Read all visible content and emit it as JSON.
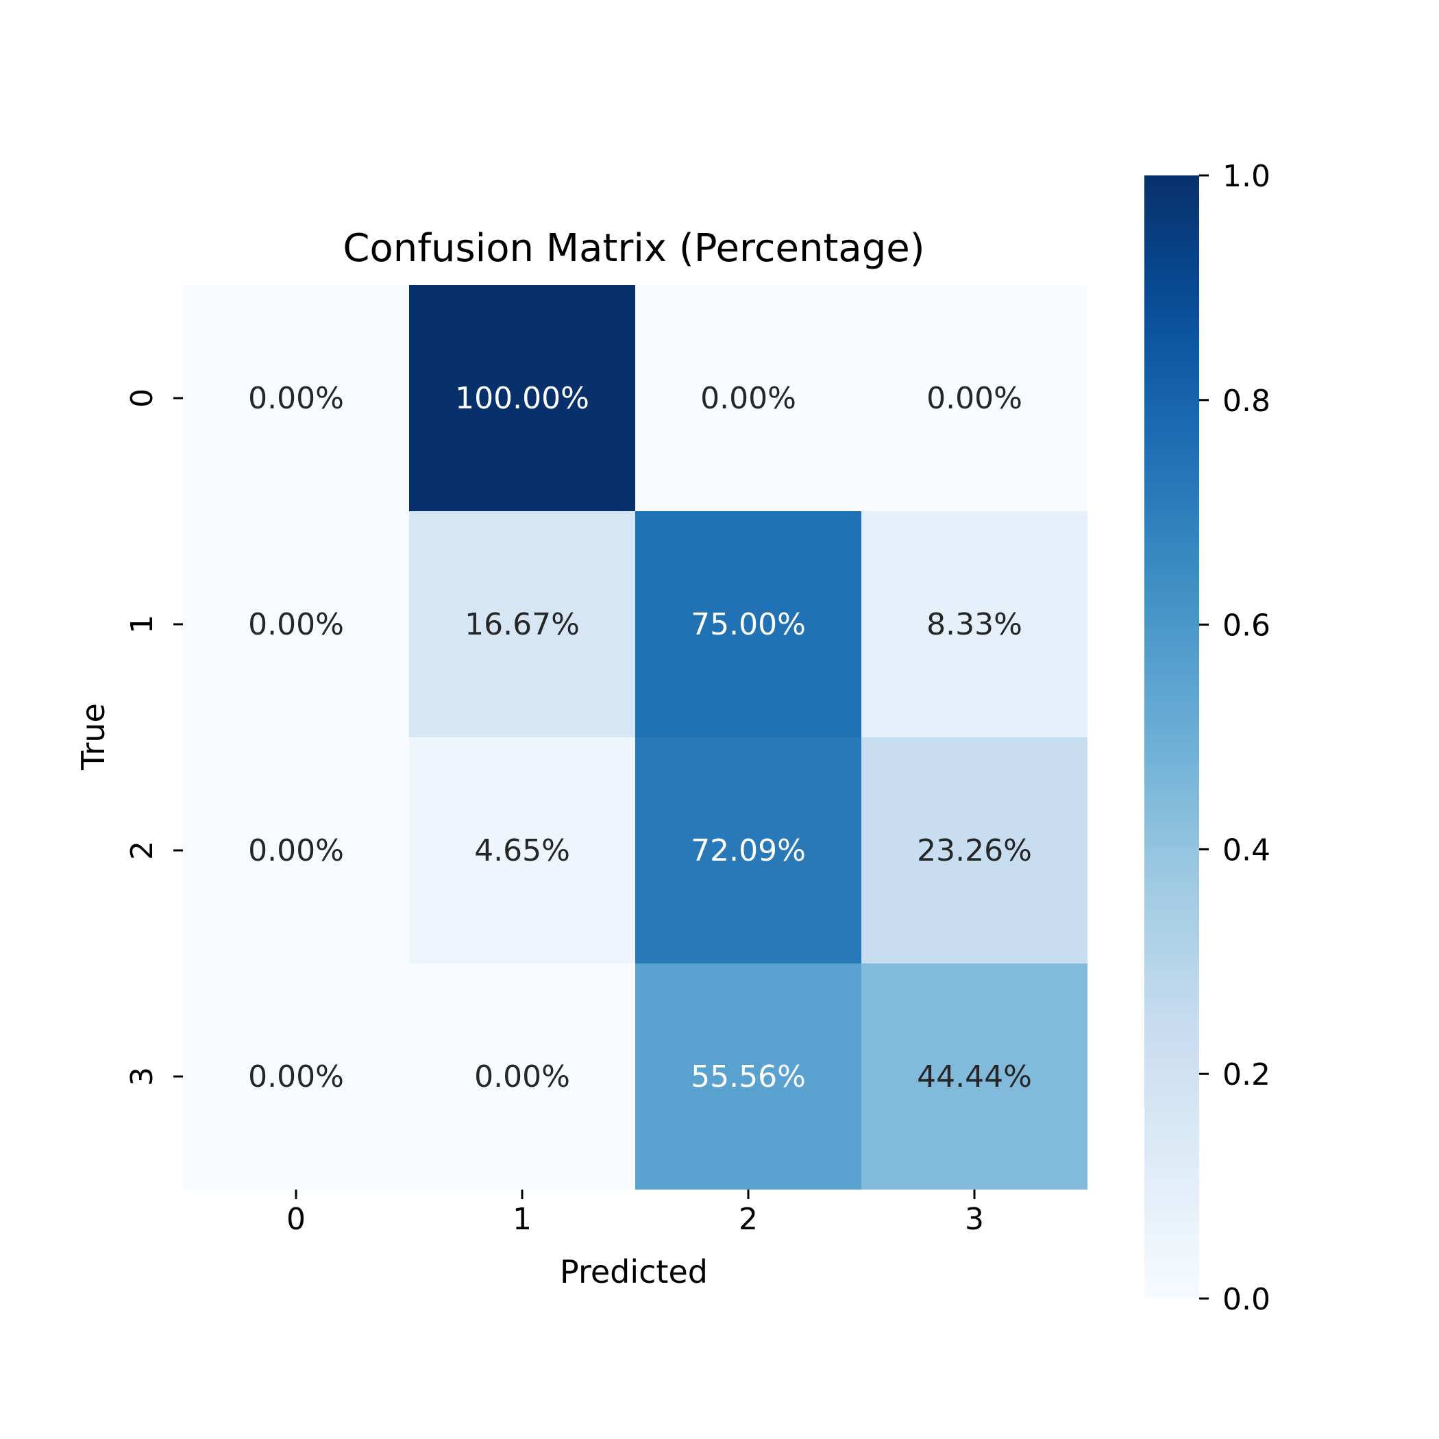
{
  "chart_data": {
    "type": "heatmap",
    "title": "Confusion Matrix (Percentage)",
    "xlabel": "Predicted",
    "ylabel": "True",
    "x_categories": [
      "0",
      "1",
      "2",
      "3"
    ],
    "y_categories": [
      "0",
      "1",
      "2",
      "3"
    ],
    "values": [
      [
        0.0,
        1.0,
        0.0,
        0.0
      ],
      [
        0.0,
        0.1667,
        0.75,
        0.0833
      ],
      [
        0.0,
        0.0465,
        0.7209,
        0.2326
      ],
      [
        0.0,
        0.0,
        0.5556,
        0.4444
      ]
    ],
    "cell_labels": [
      [
        "0.00%",
        "100.00%",
        "0.00%",
        "0.00%"
      ],
      [
        "0.00%",
        "16.67%",
        "75.00%",
        "8.33%"
      ],
      [
        "0.00%",
        "4.65%",
        "72.09%",
        "23.26%"
      ],
      [
        "0.00%",
        "0.00%",
        "55.56%",
        "44.44%"
      ]
    ],
    "colormap": "Blues",
    "colorbar": {
      "range": [
        0.0,
        1.0
      ],
      "ticks": [
        "0.0",
        "0.2",
        "0.4",
        "0.6",
        "0.8",
        "1.0"
      ]
    },
    "colors": {
      "low": "#f7fbff",
      "high": "#08306b",
      "text_dark": "#262626",
      "text_light": "#ffffff"
    }
  }
}
